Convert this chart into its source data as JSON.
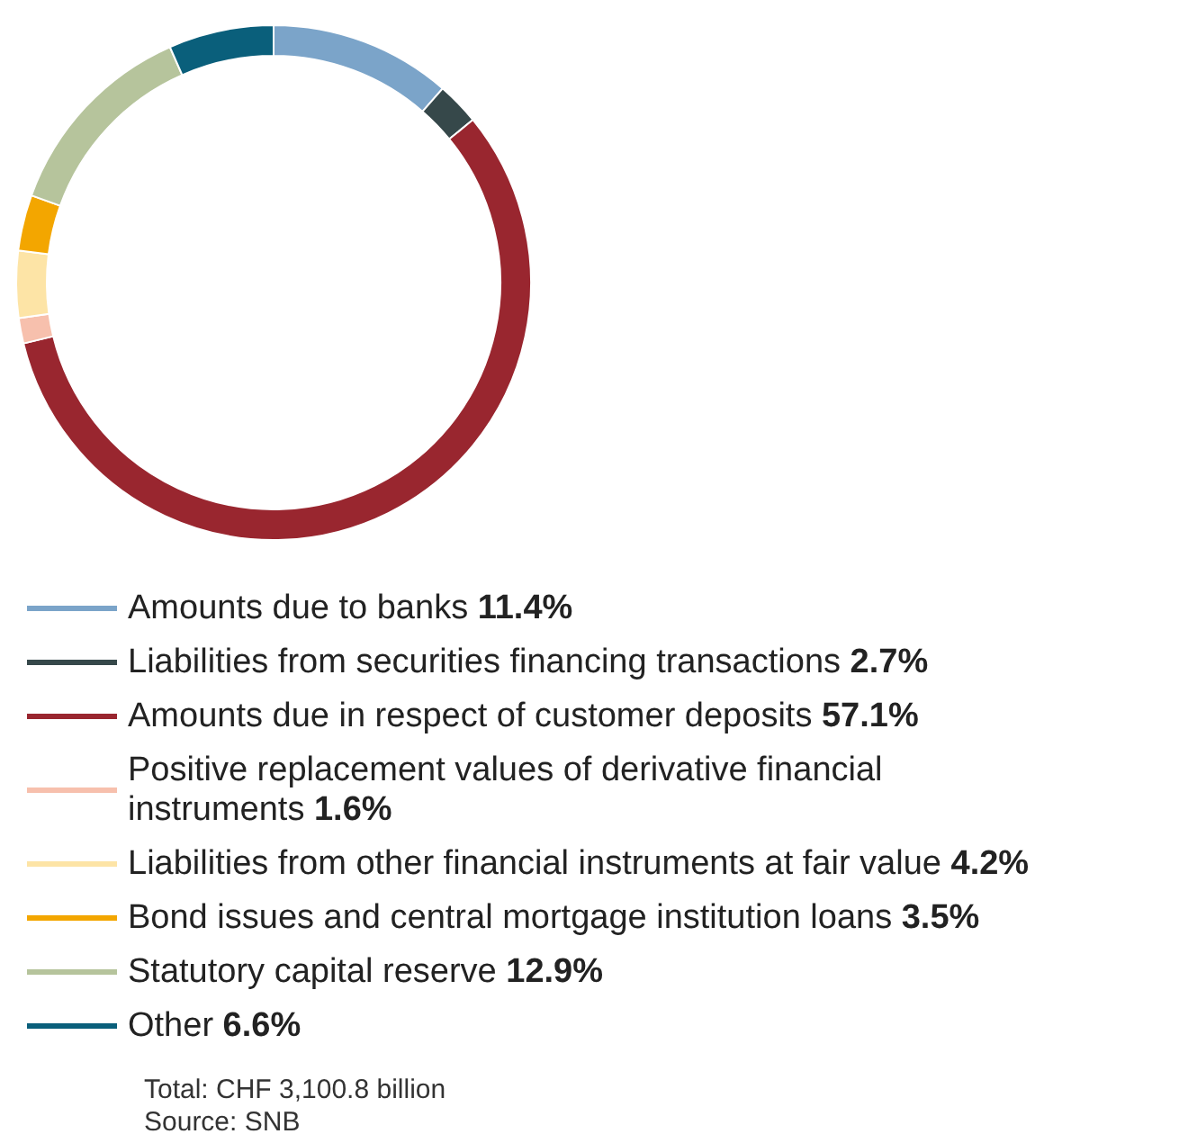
{
  "chart_data": {
    "type": "donut",
    "categories": [
      "Amounts due to banks",
      "Liabilities from securities financing transactions",
      "Amounts due in respect of customer deposits",
      "Positive replacement values of derivative financial instruments",
      "Liabilities from other financial instruments at fair value",
      "Bond issues and central mortgage institution loans",
      "Statutory capital reserve",
      "Other"
    ],
    "values": [
      11.4,
      2.7,
      57.1,
      1.6,
      4.2,
      3.5,
      12.9,
      6.6
    ],
    "value_labels": [
      "11.4%",
      "2.7%",
      "57.1%",
      "1.6%",
      "4.2%",
      "3.5%",
      "12.9%",
      "6.6%"
    ],
    "colors": [
      "#7ba4c9",
      "#36484a",
      "#99262f",
      "#f7c0ad",
      "#fde4a6",
      "#f3a600",
      "#b6c49c",
      "#0a5f7b"
    ],
    "legend": "bottom",
    "annotations": [
      "Total: CHF 3,100.8 billion",
      "Source: SNB"
    ]
  }
}
